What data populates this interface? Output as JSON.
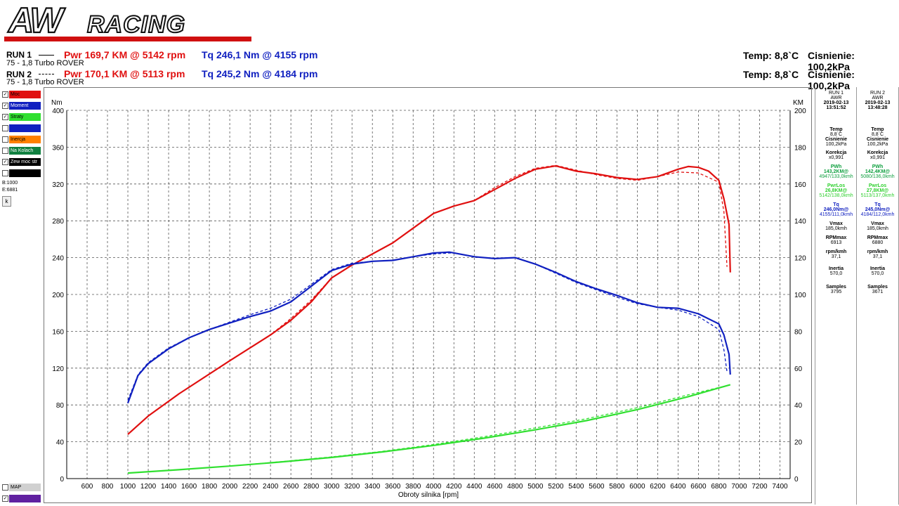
{
  "header": {
    "logo_text": "AWRACING",
    "runs": [
      {
        "label": "RUN 1",
        "car": "75 - 1,8 Turbo ROVER",
        "pwr": "Pwr  169,7 KM @ 5142 rpm",
        "tq": "Tq 246,1 Nm @ 4155 rpm",
        "temp": "Temp: 8,8`C",
        "pressure": "Cisnienie: 100,2kPa"
      },
      {
        "label": "RUN 2",
        "car": "75 - 1,8 Turbo ROVER",
        "pwr": "Pwr  170,1 KM @ 5113 rpm",
        "tq": "Tq 245,2 Nm @ 4184 rpm",
        "temp": "Temp: 8,8`C",
        "pressure": "Cisnienie: 100,2kPa"
      }
    ]
  },
  "legend": {
    "items": [
      {
        "label": "Moc",
        "color": "#e01010",
        "checked": true
      },
      {
        "label": "Moment",
        "color": "#1020c0",
        "checked": true
      },
      {
        "label": "Straty",
        "color": "#30e030",
        "checked": true
      },
      {
        "label": "",
        "color": "#1020c0",
        "checked": false
      },
      {
        "label": "Inercja",
        "color": "#ff8000",
        "checked": false
      },
      {
        "label": "Na Kolach",
        "color": "#108040",
        "checked": false
      },
      {
        "label": "Zew moc str",
        "color": "#000000",
        "checked": true
      },
      {
        "label": "",
        "color": "#000000",
        "checked": false
      }
    ],
    "b_value": "B:1000",
    "e_value": "E:6881",
    "k_button": "k",
    "map_label": "MAP",
    "bottom_label": "",
    "bottom_color": "#6020a0"
  },
  "panels": [
    {
      "run": "RUN 1",
      "company": "AWR",
      "date": "2019-02-13",
      "time": "13:51:52",
      "temp_label": "Temp",
      "temp": "8,8`C",
      "pressure_label": "Cisnienie",
      "pressure": "100,2kPa",
      "corr_label": "Korekcja",
      "corr": "x0,991",
      "pwh_label": "PWh",
      "pwh": "143,2KM@",
      "pwh_sub": "4947/133,0kmh",
      "pwrlos_label": "PwrLos",
      "pwrlos": "26,8KM@",
      "pwrlos_sub": "5142/138,0kmh",
      "tq_label": "Tq",
      "tq": "246,0Nm@",
      "tq_sub": "4155/111,0kmh",
      "vmax_label": "Vmax",
      "vmax": "185,0kmh",
      "rpmmax_label": "RPMmax",
      "rpmmax": "6913",
      "rpmkmh_label": "rpm/kmh",
      "rpmkmh": "37,1",
      "inertia_label": "Inertia",
      "inertia": "570,0",
      "samples_label": "Samples",
      "samples": "3795"
    },
    {
      "run": "RUN 2",
      "company": "AWR",
      "date": "2019-02-13",
      "time": "13:48:28",
      "temp_label": "Temp",
      "temp": "8,8`C",
      "pressure_label": "Cisnienie",
      "pressure": "100,2kPa",
      "corr_label": "Korekcja",
      "corr": "x0,991",
      "pwh_label": "PWh",
      "pwh": "142,4KM@",
      "pwh_sub": "5080/136,0kmh",
      "pwrlos_label": "PwrLos",
      "pwrlos": "27,8KM@",
      "pwrlos_sub": "5113/137,0kmh",
      "tq_label": "Tq",
      "tq": "245,0Nm@",
      "tq_sub": "4184/112,0kmh",
      "vmax_label": "Vmax",
      "vmax": "185,0kmh",
      "rpmmax_label": "RPMmax",
      "rpmmax": "6880",
      "rpmkmh_label": "rpm/kmh",
      "rpmkmh": "37,1",
      "inertia_label": "Inertia",
      "inertia": "570,0",
      "samples_label": "Samples",
      "samples": "3671"
    }
  ],
  "chart_data": {
    "type": "line",
    "xlabel": "Obroty silnika [rpm]",
    "ylabel": "Nm",
    "y2label": "KM",
    "xlim": [
      400,
      7500
    ],
    "xticks": [
      600,
      800,
      1000,
      1200,
      1400,
      1600,
      1800,
      2000,
      2200,
      2400,
      2600,
      2800,
      3000,
      3200,
      3400,
      3600,
      3800,
      4000,
      4200,
      4400,
      4600,
      4800,
      5000,
      5200,
      5400,
      5600,
      5800,
      6000,
      6200,
      6400,
      6600,
      6800,
      7000,
      7200,
      7400
    ],
    "ylim": [
      0,
      400
    ],
    "yticks": [
      0,
      40,
      80,
      120,
      160,
      200,
      240,
      280,
      320,
      360,
      400
    ],
    "y2lim": [
      0,
      200
    ],
    "y2ticks": [
      0,
      20,
      40,
      60,
      80,
      100,
      120,
      140,
      160,
      180,
      200
    ],
    "grid": true,
    "series": [
      {
        "kind": "power_km",
        "axis": "right",
        "color": "#e01010",
        "style": "solid",
        "x": [
          1000,
          1200,
          1500,
          2000,
          2400,
          2600,
          2800,
          3000,
          3200,
          3400,
          3600,
          3800,
          4000,
          4200,
          4400,
          4600,
          4800,
          5000,
          5200,
          5400,
          5600,
          5800,
          6000,
          6200,
          6400,
          6500,
          6600,
          6700,
          6800,
          6850,
          6900,
          6913
        ],
        "y": [
          24,
          34,
          46,
          64,
          78,
          86,
          96,
          109,
          116,
          122,
          128,
          136,
          144,
          148,
          151,
          157,
          163,
          168,
          169.8,
          167,
          165.5,
          163.5,
          162.5,
          164,
          168,
          169.5,
          169,
          167,
          162,
          152,
          138,
          112
        ]
      },
      {
        "kind": "power_km_run2",
        "axis": "right",
        "color": "#e01010",
        "style": "dashed",
        "x": [
          1000,
          1200,
          1500,
          2000,
          2400,
          2600,
          2800,
          3000,
          3200,
          3400,
          3600,
          3800,
          4000,
          4200,
          4400,
          4600,
          4800,
          5000,
          5200,
          5400,
          5600,
          5800,
          6000,
          6200,
          6400,
          6600,
          6800,
          6850,
          6880
        ],
        "y": [
          24,
          34,
          46,
          64,
          78,
          87,
          97,
          109,
          116,
          122,
          128,
          136,
          144,
          148,
          151,
          158,
          164,
          168.5,
          170.1,
          167.5,
          165,
          163,
          162,
          164,
          166.5,
          166,
          161,
          145,
          115
        ]
      },
      {
        "kind": "torque_nm",
        "axis": "left",
        "color": "#1020c0",
        "style": "solid",
        "x": [
          1000,
          1100,
          1200,
          1400,
          1600,
          1800,
          2000,
          2200,
          2400,
          2600,
          2800,
          3000,
          3200,
          3400,
          3600,
          3800,
          4000,
          4155,
          4400,
          4600,
          4800,
          5000,
          5200,
          5400,
          5600,
          5800,
          6000,
          6200,
          6400,
          6600,
          6800,
          6850,
          6900,
          6913
        ],
        "y": [
          82,
          112,
          125,
          141,
          153,
          162,
          169,
          176,
          182,
          192,
          209,
          226,
          233,
          236,
          237,
          241,
          245,
          246,
          241,
          239,
          240,
          233,
          224,
          214,
          206,
          199,
          191,
          186,
          185,
          179,
          168,
          156,
          135,
          113
        ]
      },
      {
        "kind": "torque_nm_run2",
        "axis": "left",
        "color": "#1020c0",
        "style": "dashed",
        "x": [
          1000,
          1100,
          1200,
          1400,
          1600,
          1800,
          2000,
          2200,
          2400,
          2600,
          2800,
          3000,
          3200,
          3400,
          3600,
          3800,
          4000,
          4184,
          4400,
          4600,
          4800,
          5000,
          5200,
          5400,
          5600,
          5800,
          6000,
          6200,
          6400,
          6600,
          6800,
          6850,
          6880
        ],
        "y": [
          85,
          113,
          126,
          142,
          153,
          162,
          170,
          178,
          185,
          195,
          211,
          227,
          234,
          236,
          237,
          241,
          244,
          245.2,
          241,
          239,
          240,
          233,
          223,
          213,
          205,
          197,
          190,
          186,
          183,
          176,
          162,
          140,
          116
        ]
      },
      {
        "kind": "losses_km",
        "axis": "right",
        "color": "#30e030",
        "style": "solid",
        "x": [
          1000,
          1500,
          2000,
          2500,
          3000,
          3500,
          4000,
          4500,
          5000,
          5500,
          6000,
          6500,
          6913
        ],
        "y": [
          3,
          4.8,
          6.8,
          9,
          11.5,
          14.5,
          18,
          22,
          26.5,
          31.5,
          37.5,
          44.5,
          51
        ]
      },
      {
        "kind": "losses_km_run2",
        "axis": "right",
        "color": "#30e030",
        "style": "dashed",
        "x": [
          1000,
          1500,
          2000,
          2500,
          3000,
          3500,
          4000,
          4500,
          5000,
          5500,
          6000,
          6500,
          6880
        ],
        "y": [
          3,
          4.8,
          6.8,
          9.2,
          11.8,
          14.8,
          18.5,
          22.8,
          27.5,
          32.5,
          38.5,
          45.5,
          50.5
        ]
      }
    ]
  }
}
